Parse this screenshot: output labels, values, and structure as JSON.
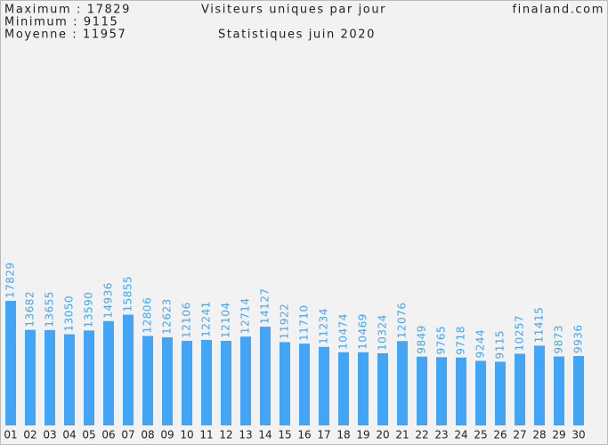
{
  "header": {
    "maximum": "Maximum : 17829",
    "minimum": "Minimum : 9115",
    "average": "Moyenne : 11957",
    "site": "finaland.com"
  },
  "chart_data": {
    "type": "bar",
    "title": "Visiteurs uniques par jour",
    "subtitle": "Statistiques juin 2020",
    "categories": [
      "01",
      "02",
      "03",
      "04",
      "05",
      "06",
      "07",
      "08",
      "09",
      "10",
      "11",
      "12",
      "13",
      "14",
      "15",
      "16",
      "17",
      "18",
      "19",
      "20",
      "21",
      "22",
      "23",
      "24",
      "25",
      "26",
      "27",
      "28",
      "29",
      "30"
    ],
    "values": [
      17829,
      13682,
      13655,
      13050,
      13590,
      14936,
      15855,
      12806,
      12623,
      12106,
      12241,
      12104,
      12714,
      14127,
      11922,
      11710,
      11234,
      10474,
      10469,
      10324,
      12076,
      9849,
      9765,
      9718,
      9244,
      9115,
      10257,
      11415,
      9873,
      9936
    ],
    "color": "#42a5f5"
  }
}
